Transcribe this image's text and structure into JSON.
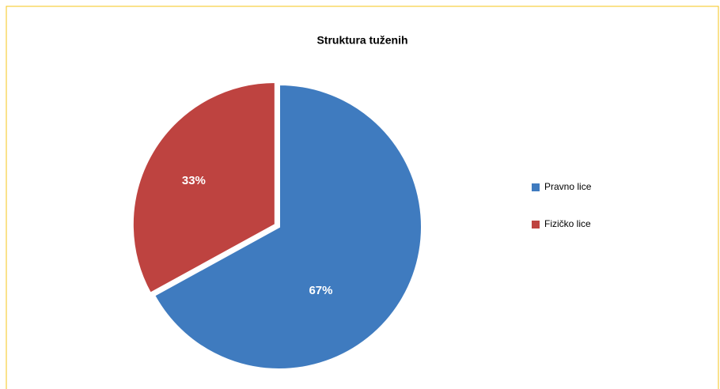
{
  "chart_data": {
    "type": "pie",
    "title": "Struktura tuženih",
    "categories": [
      "Pravno lice",
      "Fizičko lice"
    ],
    "values": [
      67,
      33
    ],
    "value_labels": [
      "67%",
      "33%"
    ],
    "colors": [
      "#3f7bbf",
      "#be4340"
    ],
    "legend": "right"
  }
}
